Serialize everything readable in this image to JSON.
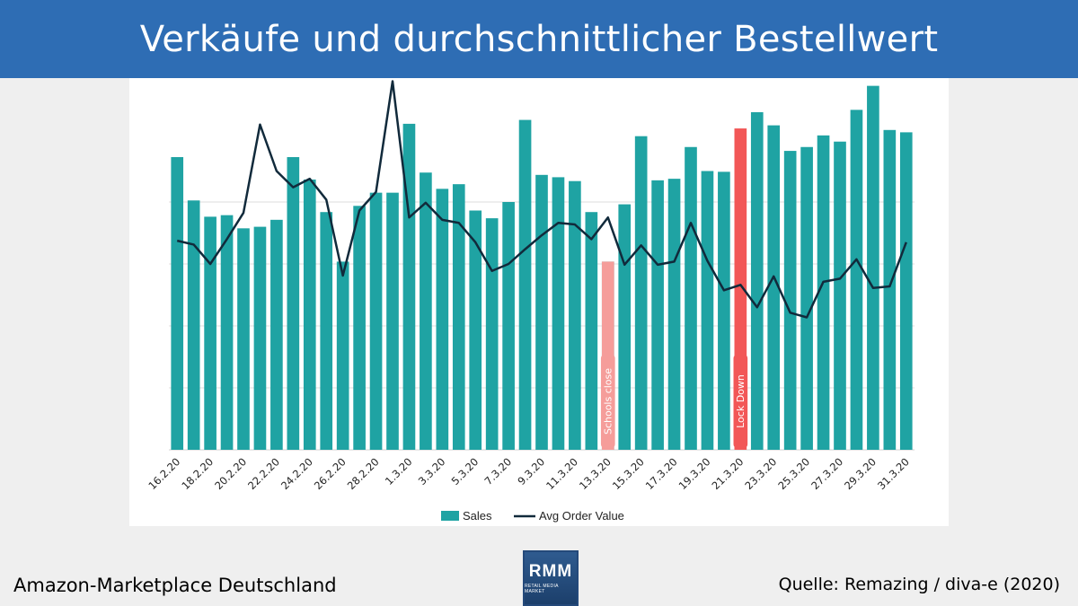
{
  "title": "Verkäufe und durchschnittlicher Bestellwert",
  "footer": {
    "left": "Amazon-Marketplace Deutschland",
    "right": "Quelle: Remazing / diva-e (2020)"
  },
  "logo": {
    "text": "RMM",
    "subtext": "RETAIL MEDIA MARKET"
  },
  "colors": {
    "title_bar": "#2e6db4",
    "bars": "#1fa3a3",
    "line": "#112a3b",
    "schools": "#f59d9a",
    "lockdown": "#f25757"
  },
  "chart_data": {
    "type": "bar",
    "categories": [
      "16.2.20",
      "17.2.20",
      "18.2.20",
      "19.2.20",
      "20.2.20",
      "21.2.20",
      "22.2.20",
      "23.2.20",
      "24.2.20",
      "25.2.20",
      "26.2.20",
      "27.2.20",
      "28.2.20",
      "29.2.20",
      "1.3.20",
      "2.3.20",
      "3.3.20",
      "4.3.20",
      "5.3.20",
      "6.3.20",
      "7.3.20",
      "8.3.20",
      "9.3.20",
      "10.3.20",
      "11.3.20",
      "12.3.20",
      "13.3.20",
      "14.3.20",
      "15.3.20",
      "16.3.20",
      "17.3.20",
      "18.3.20",
      "19.3.20",
      "20.3.20",
      "21.3.20",
      "22.3.20",
      "23.3.20",
      "24.3.20",
      "25.3.20",
      "26.3.20",
      "27.3.20",
      "28.3.20",
      "29.3.20",
      "30.3.20",
      "31.3.20"
    ],
    "tick_labels": [
      "16.2.20",
      "18.2.20",
      "20.2.20",
      "22.2.20",
      "24.2.20",
      "26.2.20",
      "28.2.20",
      "1.3.20",
      "3.3.20",
      "5.3.20",
      "7.3.20",
      "9.3.20",
      "11.3.20",
      "13.3.20",
      "15.3.20",
      "17.3.20",
      "19.3.20",
      "21.3.20",
      "23.3.20",
      "25.3.20",
      "27.3.20",
      "29.3.20",
      "31.3.20"
    ],
    "series": [
      {
        "name": "Sales",
        "type": "bar",
        "values": [
          3.78,
          3.22,
          3.01,
          3.03,
          2.86,
          2.88,
          2.97,
          3.78,
          3.49,
          3.07,
          2.43,
          3.15,
          3.32,
          3.32,
          4.21,
          3.58,
          3.37,
          3.43,
          3.09,
          2.99,
          3.2,
          4.26,
          3.55,
          3.52,
          3.47,
          3.07,
          2.43,
          3.17,
          4.05,
          3.48,
          3.5,
          3.91,
          3.6,
          3.59,
          4.15,
          4.36,
          4.19,
          3.86,
          3.91,
          4.06,
          3.98,
          4.39,
          4.7,
          4.13,
          4.1
        ]
      },
      {
        "name": "Avg Order Value",
        "type": "line",
        "values": [
          2.7,
          2.65,
          2.4,
          2.72,
          3.06,
          4.2,
          3.6,
          3.39,
          3.5,
          3.23,
          2.25,
          3.09,
          3.33,
          4.76,
          3.0,
          3.19,
          2.97,
          2.93,
          2.68,
          2.31,
          2.4,
          2.59,
          2.77,
          2.93,
          2.91,
          2.72,
          3.0,
          2.39,
          2.64,
          2.39,
          2.43,
          2.93,
          2.44,
          2.06,
          2.13,
          1.84,
          2.24,
          1.77,
          1.71,
          2.17,
          2.21,
          2.46,
          2.09,
          2.11,
          2.68
        ]
      }
    ],
    "ylim": [
      0,
      4.8
    ],
    "grid": true,
    "legend": "bottom-center",
    "highlights": [
      {
        "category": "13.3.20",
        "label": "Schools close",
        "color": "#f59d9a"
      },
      {
        "category": "21.3.20",
        "label": "Lock Down",
        "color": "#f25757"
      }
    ]
  }
}
